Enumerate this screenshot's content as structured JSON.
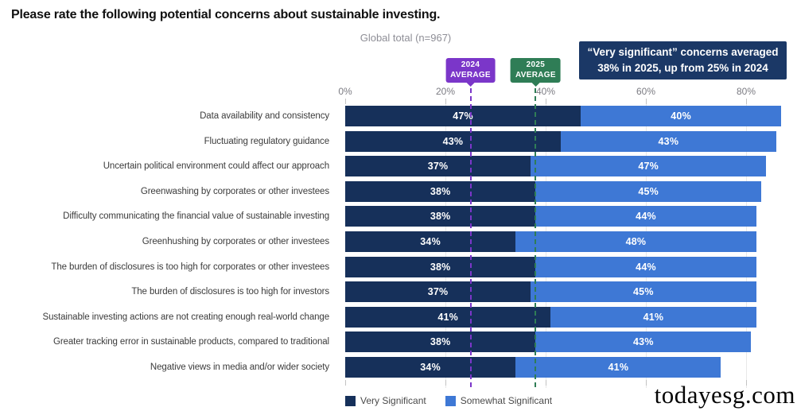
{
  "page": {
    "title": "Please rate the following potential concerns about sustainable investing.",
    "subtitle": "Global total (n=967)",
    "watermark": "todayesg.com"
  },
  "annotations": {
    "avg_2024": {
      "line1": "2024",
      "line2": "AVERAGE",
      "value_pct": 25,
      "color": "#7B36C9"
    },
    "avg_2025": {
      "line1": "2025",
      "line2": "AVERAGE",
      "value_pct": 38,
      "color": "#2F7D56"
    },
    "callout": {
      "line1": "“Very significant” concerns averaged",
      "line2_bold": "38% in 2025",
      "line2_rest": ", up from 25% in 2024",
      "bg_color": "#1B3866"
    }
  },
  "chart_data": {
    "type": "bar",
    "orientation": "horizontal",
    "stacked": true,
    "title": "Please rate the following potential concerns about sustainable investing.",
    "subtitle": "Global total (n=967)",
    "categories": [
      "Data availability and consistency",
      "Fluctuating regulatory guidance",
      "Uncertain political environment could affect our approach",
      "Greenwashing by corporates or other investees",
      "Difficulty communicating the financial value of sustainable investing",
      "Greenhushing by corporates or other investees",
      "The burden of disclosures is too high for corporates or other investees",
      "The burden of disclosures is too high for investors",
      "Sustainable investing actions are not creating enough real-world change",
      "Greater tracking error in sustainable products, compared to traditional",
      "Negative views in media and/or wider society"
    ],
    "series": [
      {
        "name": "Very Significant",
        "color": "#16305A",
        "values": [
          47,
          43,
          37,
          38,
          38,
          34,
          38,
          37,
          41,
          38,
          34
        ]
      },
      {
        "name": "Somewhat Significant",
        "color": "#3E78D5",
        "values": [
          40,
          43,
          47,
          45,
          44,
          48,
          44,
          45,
          41,
          43,
          41
        ]
      }
    ],
    "value_suffix": "%",
    "x_axis": {
      "tick_labels": [
        "0%",
        "20%",
        "40%",
        "60%",
        "80%"
      ],
      "tick_values": [
        0,
        20,
        40,
        60,
        80
      ],
      "grid": true
    },
    "reference_lines": [
      {
        "label": "2024 AVERAGE",
        "value": 25,
        "color": "#7B36C9"
      },
      {
        "label": "2025 AVERAGE",
        "value": 38,
        "color": "#2F7D56"
      }
    ],
    "legend_position": "bottom"
  }
}
